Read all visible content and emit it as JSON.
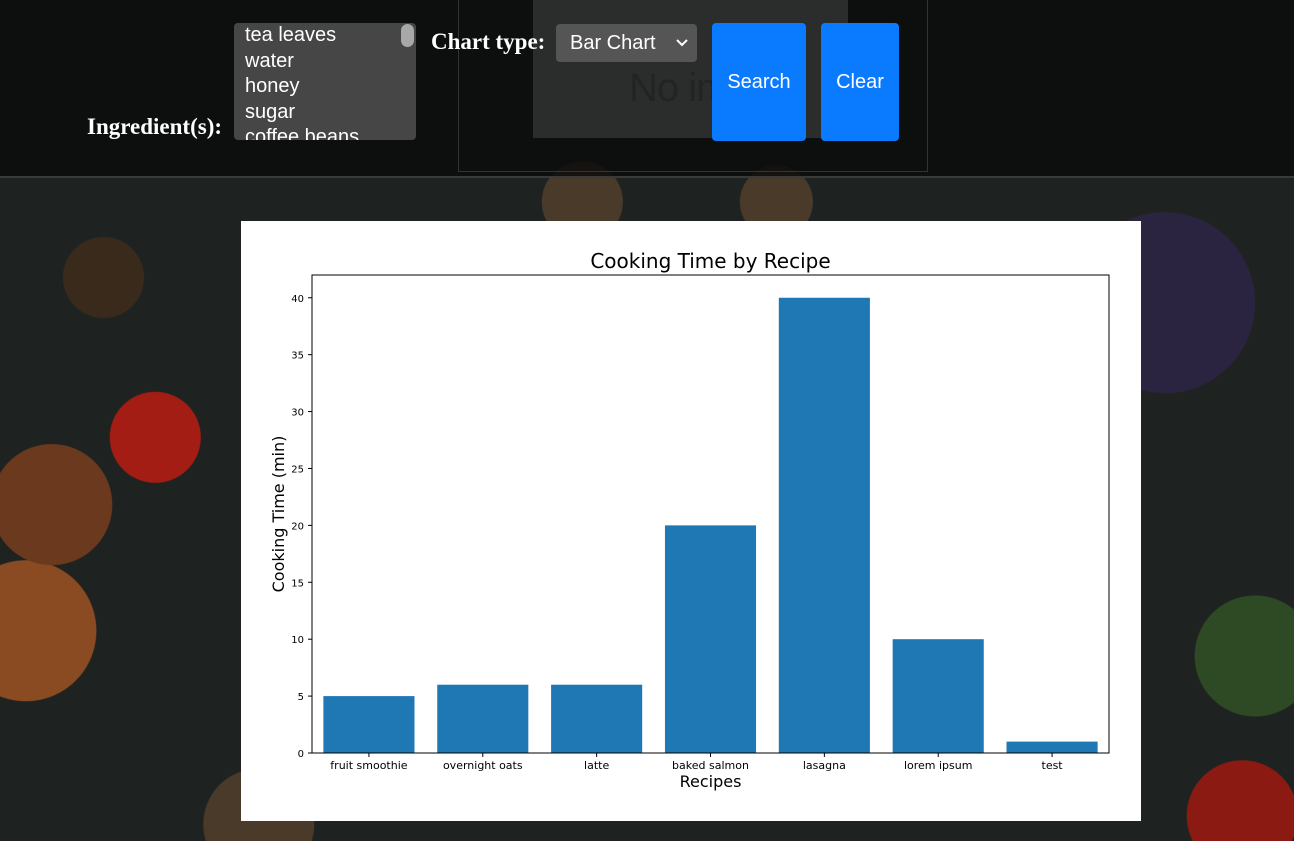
{
  "header": {
    "ingredient_label": "Ingredient(s):",
    "ingredient_options": [
      "tea leaves",
      "water",
      "honey",
      "sugar",
      "coffee beans"
    ],
    "chart_type_label": "Chart type:",
    "chart_type_value": "Bar Chart",
    "broken_image_text": "No im",
    "search_label": "Search",
    "clear_label": "Clear"
  },
  "colors": {
    "bar": "#1f77b4",
    "button": "#0a7bff"
  },
  "chart_data": {
    "type": "bar",
    "title": "Cooking Time by Recipe",
    "xlabel": "Recipes",
    "ylabel": "Cooking Time (min)",
    "categories": [
      "fruit smoothie",
      "overnight oats",
      "latte",
      "baked salmon",
      "lasagna",
      "lorem ipsum",
      "test"
    ],
    "values": [
      5,
      6,
      6,
      20,
      40,
      10,
      1
    ],
    "ylim": [
      0,
      42
    ],
    "yticks": [
      0,
      5,
      10,
      15,
      20,
      25,
      30,
      35,
      40
    ],
    "grid": false
  }
}
